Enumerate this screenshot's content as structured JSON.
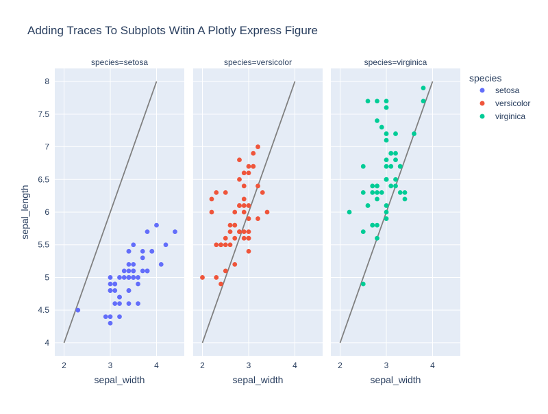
{
  "chart_data": {
    "type": "scatter",
    "title": "Adding Traces To Subplots Witin A Plotly Express Figure",
    "ylabel": "sepal_length",
    "xlabel": "sepal_width",
    "xlim": [
      1.8,
      4.6
    ],
    "ylim": [
      3.8,
      8.2
    ],
    "x_ticks": [
      "2",
      "3",
      "4"
    ],
    "y_ticks": [
      "4",
      "4.5",
      "5",
      "5.5",
      "6",
      "6.5",
      "7",
      "7.5",
      "8"
    ],
    "legend": {
      "title": "species",
      "placement": "top-right"
    },
    "reference_line": {
      "color": "#808080",
      "points": [
        [
          2,
          4
        ],
        [
          4,
          8
        ]
      ]
    },
    "panels": [
      {
        "title": "species=setosa",
        "name": "setosa",
        "color": "#636efa",
        "points": [
          [
            3.5,
            5.1
          ],
          [
            3.0,
            4.9
          ],
          [
            3.2,
            4.7
          ],
          [
            3.1,
            4.6
          ],
          [
            3.6,
            5.0
          ],
          [
            3.9,
            5.4
          ],
          [
            3.4,
            4.6
          ],
          [
            3.4,
            5.0
          ],
          [
            2.9,
            4.4
          ],
          [
            3.1,
            4.9
          ],
          [
            3.7,
            5.4
          ],
          [
            3.4,
            4.8
          ],
          [
            3.0,
            4.8
          ],
          [
            3.0,
            4.3
          ],
          [
            4.0,
            5.8
          ],
          [
            4.4,
            5.7
          ],
          [
            3.9,
            5.4
          ],
          [
            3.5,
            5.1
          ],
          [
            3.8,
            5.7
          ],
          [
            3.8,
            5.1
          ],
          [
            3.4,
            5.4
          ],
          [
            3.7,
            5.1
          ],
          [
            3.6,
            4.6
          ],
          [
            3.3,
            5.1
          ],
          [
            3.4,
            4.8
          ],
          [
            3.0,
            5.0
          ],
          [
            3.4,
            5.0
          ],
          [
            3.5,
            5.2
          ],
          [
            3.4,
            5.2
          ],
          [
            3.2,
            4.7
          ],
          [
            3.1,
            4.8
          ],
          [
            3.4,
            5.4
          ],
          [
            4.1,
            5.2
          ],
          [
            4.2,
            5.5
          ],
          [
            3.1,
            4.9
          ],
          [
            3.2,
            5.0
          ],
          [
            3.5,
            5.5
          ],
          [
            3.6,
            4.9
          ],
          [
            3.0,
            4.4
          ],
          [
            3.4,
            5.1
          ],
          [
            3.5,
            5.0
          ],
          [
            2.3,
            4.5
          ],
          [
            3.2,
            4.4
          ],
          [
            3.5,
            5.0
          ],
          [
            3.8,
            5.1
          ],
          [
            3.0,
            4.8
          ],
          [
            3.8,
            5.1
          ],
          [
            3.2,
            4.6
          ],
          [
            3.7,
            5.3
          ],
          [
            3.3,
            5.0
          ]
        ]
      },
      {
        "title": "species=versicolor",
        "name": "versicolor",
        "color": "#ef553b",
        "points": [
          [
            3.2,
            7.0
          ],
          [
            3.2,
            6.4
          ],
          [
            3.1,
            6.9
          ],
          [
            2.3,
            5.5
          ],
          [
            2.8,
            6.5
          ],
          [
            2.8,
            5.7
          ],
          [
            3.3,
            6.3
          ],
          [
            2.4,
            4.9
          ],
          [
            2.9,
            6.6
          ],
          [
            2.7,
            5.2
          ],
          [
            2.0,
            5.0
          ],
          [
            3.0,
            5.9
          ],
          [
            2.2,
            6.0
          ],
          [
            2.9,
            6.1
          ],
          [
            2.9,
            5.6
          ],
          [
            3.1,
            6.7
          ],
          [
            3.0,
            5.6
          ],
          [
            2.7,
            5.8
          ],
          [
            2.2,
            6.2
          ],
          [
            2.5,
            5.6
          ],
          [
            3.2,
            5.9
          ],
          [
            2.8,
            6.1
          ],
          [
            2.5,
            6.3
          ],
          [
            2.8,
            6.1
          ],
          [
            2.9,
            6.4
          ],
          [
            3.0,
            6.6
          ],
          [
            2.8,
            6.8
          ],
          [
            3.0,
            6.7
          ],
          [
            2.9,
            6.0
          ],
          [
            2.6,
            5.7
          ],
          [
            2.4,
            5.5
          ],
          [
            2.4,
            5.5
          ],
          [
            2.7,
            5.8
          ],
          [
            2.7,
            6.0
          ],
          [
            3.0,
            5.4
          ],
          [
            3.4,
            6.0
          ],
          [
            3.1,
            6.7
          ],
          [
            2.3,
            6.3
          ],
          [
            3.0,
            5.6
          ],
          [
            2.5,
            5.5
          ],
          [
            2.6,
            5.5
          ],
          [
            3.0,
            6.1
          ],
          [
            2.6,
            5.8
          ],
          [
            2.3,
            5.0
          ],
          [
            2.7,
            5.6
          ],
          [
            3.0,
            5.7
          ],
          [
            2.9,
            5.7
          ],
          [
            2.9,
            6.2
          ],
          [
            2.5,
            5.1
          ],
          [
            2.8,
            5.7
          ]
        ]
      },
      {
        "title": "species=virginica",
        "name": "virginica",
        "color": "#00cc96",
        "points": [
          [
            3.3,
            6.3
          ],
          [
            2.7,
            5.8
          ],
          [
            3.0,
            7.1
          ],
          [
            2.9,
            6.3
          ],
          [
            3.0,
            6.5
          ],
          [
            3.0,
            7.6
          ],
          [
            2.5,
            4.9
          ],
          [
            2.9,
            7.3
          ],
          [
            2.5,
            6.7
          ],
          [
            3.6,
            7.2
          ],
          [
            3.2,
            6.5
          ],
          [
            2.7,
            6.4
          ],
          [
            3.0,
            6.8
          ],
          [
            2.5,
            5.7
          ],
          [
            2.8,
            5.8
          ],
          [
            3.2,
            6.4
          ],
          [
            3.0,
            6.5
          ],
          [
            3.8,
            7.7
          ],
          [
            2.6,
            7.7
          ],
          [
            2.2,
            6.0
          ],
          [
            3.2,
            6.9
          ],
          [
            2.8,
            5.6
          ],
          [
            2.8,
            7.7
          ],
          [
            2.7,
            6.3
          ],
          [
            3.3,
            6.7
          ],
          [
            3.2,
            7.2
          ],
          [
            2.8,
            6.2
          ],
          [
            3.0,
            6.1
          ],
          [
            2.8,
            6.4
          ],
          [
            3.0,
            7.2
          ],
          [
            2.8,
            7.4
          ],
          [
            3.8,
            7.9
          ],
          [
            2.8,
            6.4
          ],
          [
            2.8,
            6.3
          ],
          [
            2.6,
            6.1
          ],
          [
            3.0,
            7.7
          ],
          [
            3.4,
            6.3
          ],
          [
            3.1,
            6.4
          ],
          [
            3.0,
            6.0
          ],
          [
            3.1,
            6.9
          ],
          [
            3.1,
            6.7
          ],
          [
            3.1,
            6.9
          ],
          [
            2.7,
            5.8
          ],
          [
            3.2,
            6.8
          ],
          [
            3.3,
            6.7
          ],
          [
            3.0,
            6.7
          ],
          [
            2.5,
            6.3
          ],
          [
            3.0,
            6.5
          ],
          [
            3.4,
            6.2
          ],
          [
            3.0,
            5.9
          ]
        ]
      }
    ]
  }
}
